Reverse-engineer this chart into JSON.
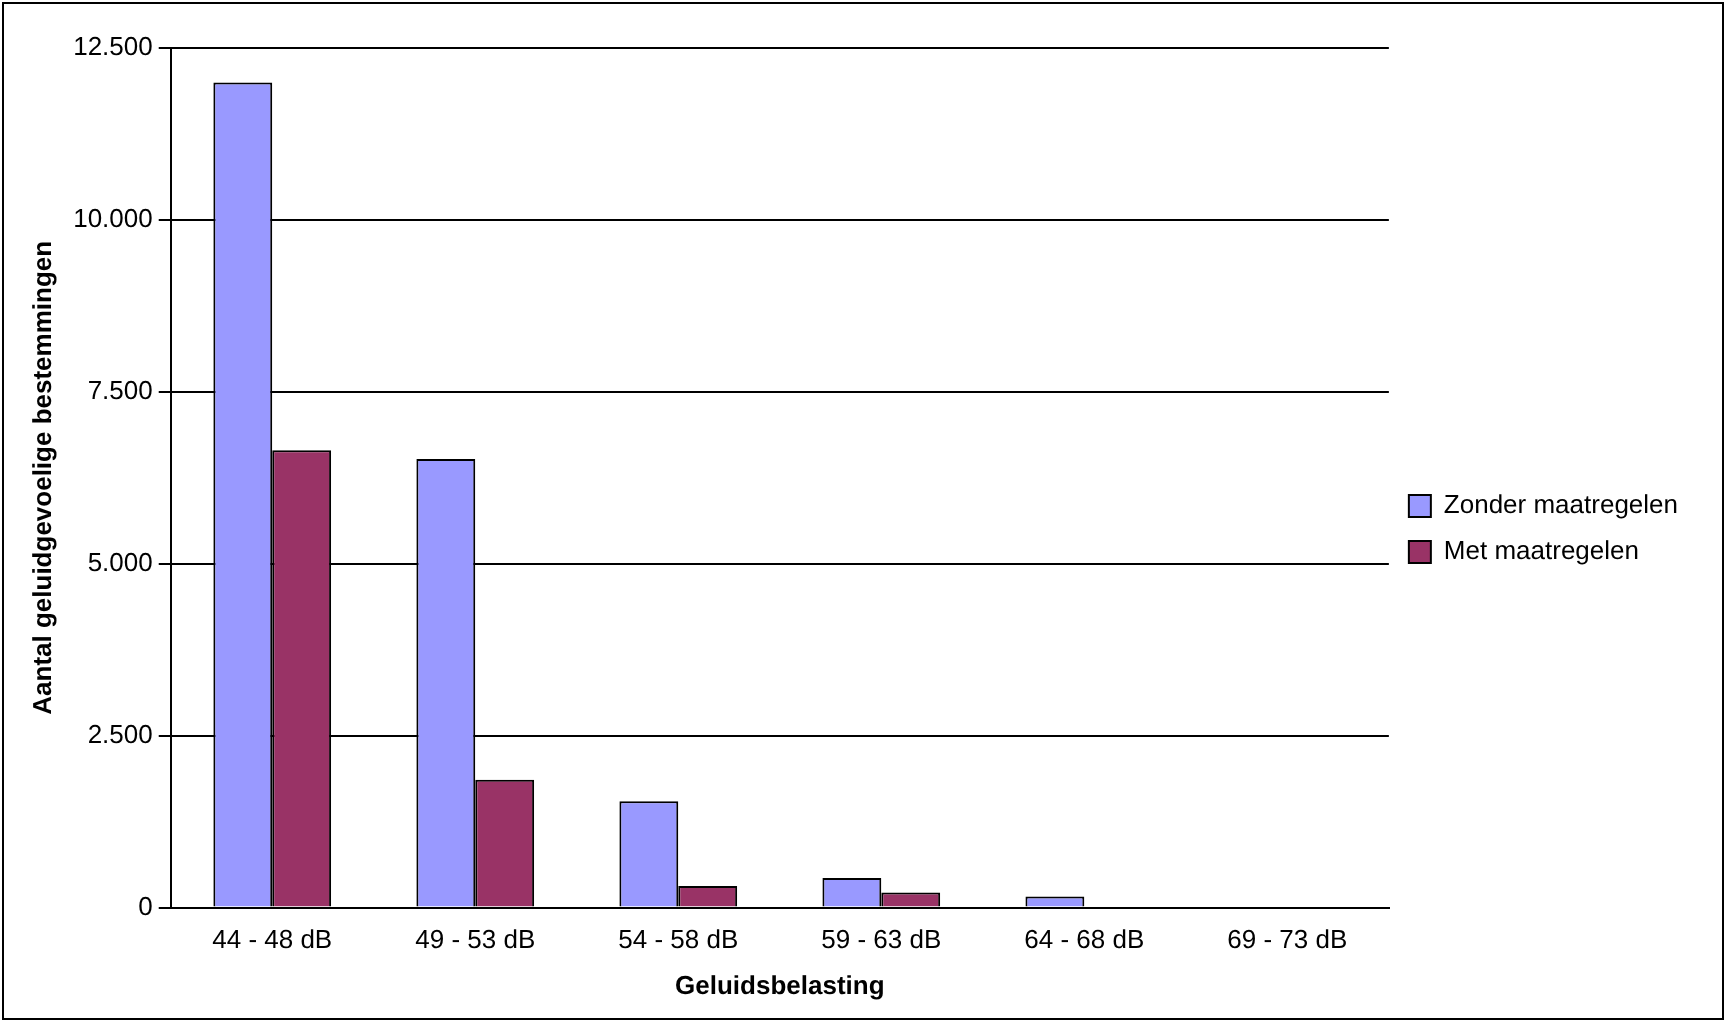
{
  "chart_data": {
    "type": "bar",
    "xlabel": "Geluidsbelasting",
    "ylabel": "Aantal geluidgevoelige bestemmingen",
    "categories": [
      "44 - 48 dB",
      "49 - 53 dB",
      "54 - 58 dB",
      "59 - 63 dB",
      "64 - 68 dB",
      "69 - 73 dB"
    ],
    "series": [
      {
        "name": "Zonder maatregelen",
        "color": "#9999ff",
        "values": [
          12000,
          6525,
          1545,
          430,
          160,
          0
        ]
      },
      {
        "name": "Met maatregelen",
        "color": "#993366",
        "values": [
          6650,
          1860,
          315,
          220,
          0,
          0
        ]
      }
    ],
    "ylim": [
      0,
      12500
    ],
    "yticks": [
      {
        "value": 0,
        "label": "0"
      },
      {
        "value": 2500,
        "label": "2.500"
      },
      {
        "value": 5000,
        "label": "5.000"
      },
      {
        "value": 7500,
        "label": "7.500"
      },
      {
        "value": 10000,
        "label": "10.000"
      },
      {
        "value": 12500,
        "label": "12.500"
      }
    ],
    "grid": "y",
    "legend": "right"
  }
}
